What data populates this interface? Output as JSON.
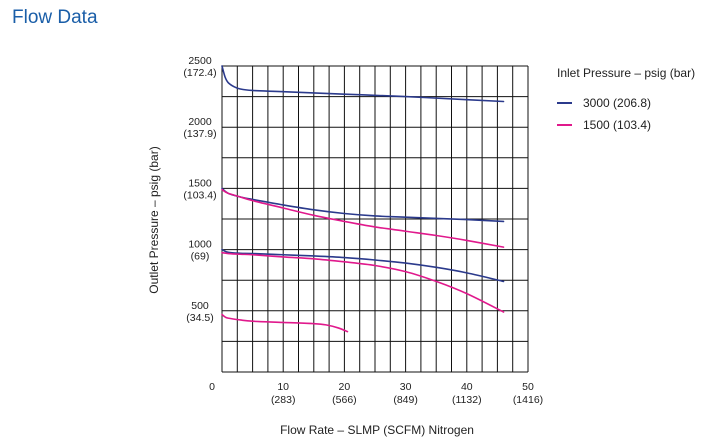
{
  "page": {
    "title": "Flow Data"
  },
  "chart_data": {
    "type": "line",
    "title": "",
    "xlabel": "Flow Rate – SLMP (SCFM) Nitrogen",
    "ylabel": "Outlet Pressure – psig (bar)",
    "xlim": [
      0,
      50
    ],
    "ylim": [
      0,
      2500
    ],
    "grid": true,
    "x_ticks": [
      {
        "value": 0,
        "label": "0",
        "sub": ""
      },
      {
        "value": 10,
        "label": "10",
        "sub": "(283)"
      },
      {
        "value": 20,
        "label": "20",
        "sub": "(566)"
      },
      {
        "value": 30,
        "label": "30",
        "sub": "(849)"
      },
      {
        "value": 40,
        "label": "40",
        "sub": "(1132)"
      },
      {
        "value": 50,
        "label": "50",
        "sub": "(1416)"
      }
    ],
    "y_ticks": [
      {
        "value": 500,
        "label": "500",
        "sub": "(34.5)"
      },
      {
        "value": 1000,
        "label": "1000",
        "sub": "(69)"
      },
      {
        "value": 1500,
        "label": "1500",
        "sub": "(103.4)"
      },
      {
        "value": 2000,
        "label": "2000",
        "sub": "(137.9)"
      },
      {
        "value": 2500,
        "label": "2500",
        "sub": "(172.4)"
      }
    ],
    "legend": {
      "title": "Inlet Pressure – psig (bar)",
      "position": "right"
    },
    "series": [
      {
        "name": "3000 (206.8)",
        "color": "#2b3a8c",
        "curves": [
          [
            [
              0,
              2500
            ],
            [
              0.5,
              2410
            ],
            [
              1,
              2365
            ],
            [
              2,
              2330
            ],
            [
              3,
              2312
            ],
            [
              5,
              2300
            ],
            [
              10,
              2290
            ],
            [
              20,
              2270
            ],
            [
              30,
              2250
            ],
            [
              40,
              2225
            ],
            [
              46,
              2210
            ]
          ],
          [
            [
              0,
              1500
            ],
            [
              1,
              1460
            ],
            [
              3,
              1430
            ],
            [
              5,
              1410
            ],
            [
              10,
              1365
            ],
            [
              15,
              1325
            ],
            [
              20,
              1295
            ],
            [
              25,
              1275
            ],
            [
              30,
              1265
            ],
            [
              40,
              1245
            ],
            [
              46,
              1230
            ]
          ],
          [
            [
              0,
              1000
            ],
            [
              1,
              978
            ],
            [
              3,
              970
            ],
            [
              5,
              968
            ],
            [
              10,
              958
            ],
            [
              15,
              948
            ],
            [
              20,
              935
            ],
            [
              25,
              915
            ],
            [
              30,
              890
            ],
            [
              35,
              855
            ],
            [
              40,
              810
            ],
            [
              46,
              740
            ]
          ]
        ]
      },
      {
        "name": "1500 (103.4)",
        "color": "#e0198c",
        "curves": [
          [
            [
              0,
              1490
            ],
            [
              1,
              1460
            ],
            [
              3,
              1430
            ],
            [
              5,
              1400
            ],
            [
              10,
              1340
            ],
            [
              15,
              1280
            ],
            [
              20,
              1230
            ],
            [
              25,
              1185
            ],
            [
              30,
              1150
            ],
            [
              35,
              1115
            ],
            [
              40,
              1075
            ],
            [
              46,
              1020
            ]
          ],
          [
            [
              0,
              975
            ],
            [
              1,
              968
            ],
            [
              3,
              962
            ],
            [
              5,
              958
            ],
            [
              10,
              940
            ],
            [
              15,
              925
            ],
            [
              20,
              900
            ],
            [
              25,
              870
            ],
            [
              30,
              820
            ],
            [
              35,
              740
            ],
            [
              40,
              640
            ],
            [
              46,
              490
            ]
          ],
          [
            [
              0,
              470
            ],
            [
              0.5,
              450
            ],
            [
              1,
              440
            ],
            [
              3,
              425
            ],
            [
              5,
              415
            ],
            [
              10,
              405
            ],
            [
              15,
              395
            ],
            [
              17,
              385
            ],
            [
              19,
              360
            ],
            [
              20.5,
              330
            ]
          ]
        ]
      }
    ]
  }
}
